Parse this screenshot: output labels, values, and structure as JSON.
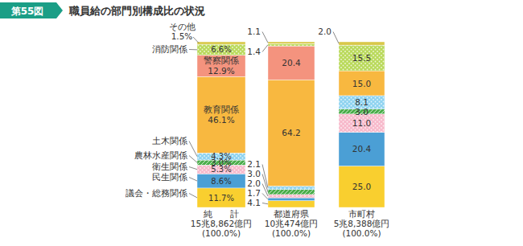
{
  "chart_data": {
    "type": "bar",
    "figure_label": "第55図",
    "title": "職員給の部門別構成比の状況",
    "categories": [
      "純　　計",
      "都道府県",
      "市町村"
    ],
    "category_totals": [
      "15兆8,862億円",
      "10兆474億円",
      "5兆8,388億円"
    ],
    "category_percents": [
      "(100.0%)",
      "(100.0%)",
      "(100.0%)"
    ],
    "stacked": true,
    "data_labels": true,
    "tick_labels": false,
    "ylim": [
      0,
      100
    ],
    "series": [
      {
        "name": "議会・総務関係",
        "color": "#f9cf2f",
        "values": [
          11.7,
          4.1,
          25.0
        ],
        "value_labels": [
          "11.7%",
          "4.1",
          "25.0"
        ]
      },
      {
        "name": "民生関係",
        "color": "#4b9fd5",
        "values": [
          8.6,
          1.7,
          20.4
        ],
        "value_labels": [
          "8.6%",
          "1.7",
          "20.4"
        ]
      },
      {
        "name": "衛生関係",
        "color": "#f7b9cb",
        "values": [
          5.3,
          2.0,
          11.0
        ],
        "value_labels": [
          "5.3%",
          "2.0",
          "11.0"
        ]
      },
      {
        "name": "農林水産関係",
        "color": "#4cae4c",
        "values": [
          3.0,
          3.0,
          3.0
        ],
        "value_labels": [
          "3.0%",
          "3.0",
          "3.0"
        ]
      },
      {
        "name": "土木関係",
        "color": "#8fd3f0",
        "values": [
          4.3,
          2.1,
          8.1
        ],
        "value_labels": [
          "4.3%",
          "2.1",
          "8.1"
        ]
      },
      {
        "name": "教育関係",
        "color": "#f8b840",
        "values": [
          46.1,
          64.2,
          15.0
        ],
        "value_labels": [
          "46.1%",
          "64.2",
          "15.0"
        ]
      },
      {
        "name": "警察関係",
        "color": "#f4937e",
        "values": [
          12.9,
          20.4,
          null
        ],
        "value_labels": [
          "12.9%",
          "20.4",
          null
        ]
      },
      {
        "name": "消防関係",
        "color": "#b9d95a",
        "values": [
          6.6,
          1.4,
          15.5
        ],
        "value_labels": [
          "6.6%",
          "1.4",
          "15.5"
        ]
      },
      {
        "name": "その他",
        "color": "#d9c84a",
        "values": [
          1.5,
          1.1,
          2.0
        ],
        "value_labels": [
          "1.5%",
          "1.1",
          "2.0"
        ]
      }
    ]
  }
}
